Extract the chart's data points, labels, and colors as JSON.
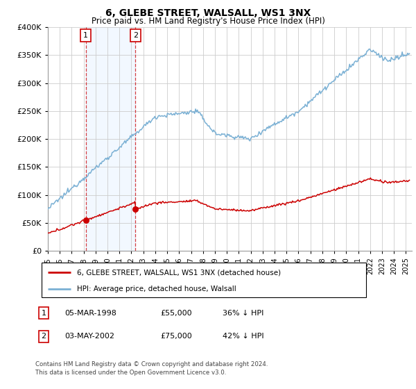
{
  "title": "6, GLEBE STREET, WALSALL, WS1 3NX",
  "subtitle": "Price paid vs. HM Land Registry's House Price Index (HPI)",
  "ylim": [
    0,
    400000
  ],
  "yticks": [
    0,
    50000,
    100000,
    150000,
    200000,
    250000,
    300000,
    350000,
    400000
  ],
  "ytick_labels": [
    "£0",
    "£50K",
    "£100K",
    "£150K",
    "£200K",
    "£250K",
    "£300K",
    "£350K",
    "£400K"
  ],
  "purchase1_date": 1998.17,
  "purchase1_price": 55000,
  "purchase2_date": 2002.34,
  "purchase2_price": 75000,
  "line_color_red": "#cc0000",
  "line_color_blue": "#7ab0d4",
  "background_color": "#ffffff",
  "grid_color": "#cccccc",
  "shading_color": "#ddeeff",
  "legend_entry1": "6, GLEBE STREET, WALSALL, WS1 3NX (detached house)",
  "legend_entry2": "HPI: Average price, detached house, Walsall",
  "table_row1": [
    "1",
    "05-MAR-1998",
    "£55,000",
    "36% ↓ HPI"
  ],
  "table_row2": [
    "2",
    "03-MAY-2002",
    "£75,000",
    "42% ↓ HPI"
  ],
  "footnote": "Contains HM Land Registry data © Crown copyright and database right 2024.\nThis data is licensed under the Open Government Licence v3.0.",
  "xmin": 1995,
  "xmax": 2025.5,
  "xtick_years": [
    1995,
    1996,
    1997,
    1998,
    1999,
    2000,
    2001,
    2002,
    2003,
    2004,
    2005,
    2006,
    2007,
    2008,
    2009,
    2010,
    2011,
    2012,
    2013,
    2014,
    2015,
    2016,
    2017,
    2018,
    2019,
    2020,
    2021,
    2022,
    2023,
    2024,
    2025
  ],
  "xtick_labels": [
    "1995",
    "1996",
    "1997",
    "1998",
    "1999",
    "2000",
    "2001",
    "2002",
    "2003",
    "2004",
    "2005",
    "2006",
    "2007",
    "2008",
    "2009",
    "2010",
    "2011",
    "2012",
    "2013",
    "2014",
    "2015",
    "2016",
    "2017",
    "2018",
    "2019",
    "2020",
    "2021",
    "2022",
    "2023",
    "2024",
    "2025"
  ]
}
